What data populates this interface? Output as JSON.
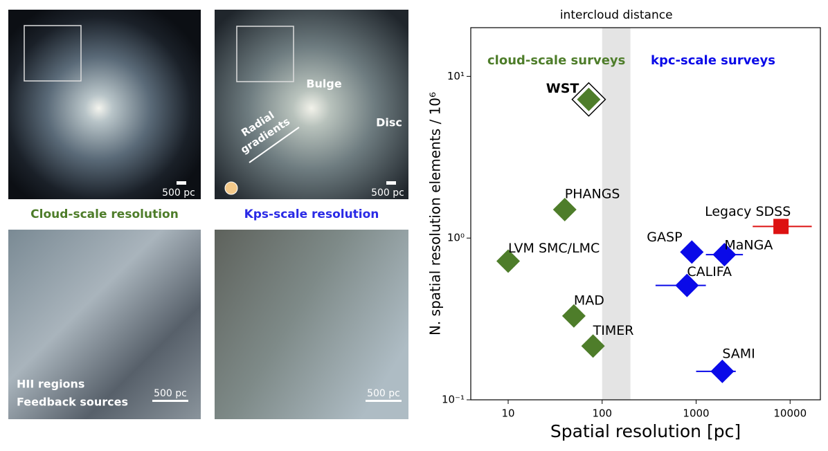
{
  "panels": [
    {
      "scale_bar": "500 pc"
    },
    {
      "scale_bar": "500 pc",
      "annotations": [
        "Bulge",
        "Disc"
      ],
      "arrow_label": [
        "Radial",
        "gradients"
      ]
    },
    {
      "scale_bar": "500 pc",
      "annotations": [
        "HII regions",
        "Feedback sources"
      ]
    },
    {
      "scale_bar": "500 pc"
    }
  ],
  "captions": [
    "Cloud-scale resolution",
    "Kps-scale resolution"
  ],
  "chart_data": {
    "type": "scatter",
    "title": "intercloud distance",
    "band": [
      100,
      200
    ],
    "xlabel": "Spatial resolution [pc]",
    "ylabel": "N. spatial resolution elements / 10⁶",
    "xscale": "log",
    "yscale": "log",
    "xlim": [
      4,
      21000
    ],
    "ylim": [
      0.1,
      20
    ],
    "xticks": [
      10,
      100,
      1000,
      10000
    ],
    "yticks": [
      {
        "value": 0.1,
        "label": "10⁻¹"
      },
      {
        "value": 1,
        "label": "10⁰"
      },
      {
        "value": 10,
        "label": "10¹"
      }
    ],
    "series": [
      {
        "name": "cloud-scale surveys",
        "color": "#4e7d2a",
        "marker": "diamond",
        "labels": [
          "WST",
          "PHANGS",
          "LVM SMC/LMC",
          "MAD",
          "TIMER"
        ],
        "x": [
          72,
          40,
          10,
          50,
          80
        ],
        "values": [
          7.2,
          1.5,
          0.72,
          0.33,
          0.215
        ],
        "xmin": [
          null,
          null,
          null,
          null,
          null
        ],
        "xmax": [
          null,
          null,
          null,
          null,
          null
        ]
      },
      {
        "name": "kpc-scale surveys",
        "color": "#0a0ae8",
        "marker": "diamond",
        "labels": [
          "GASP",
          "MaNGA",
          "CALIFA",
          "SAMI"
        ],
        "x": [
          900,
          2000,
          800,
          1900
        ],
        "values": [
          0.82,
          0.79,
          0.51,
          0.15
        ],
        "xmin": [
          null,
          1270,
          370,
          1000
        ],
        "xmax": [
          null,
          3150,
          1270,
          2640
        ]
      },
      {
        "color": "#dd1111",
        "marker": "square",
        "labels": [
          "Legacy SDSS"
        ],
        "x": [
          8000
        ],
        "values": [
          1.18
        ],
        "xmin": [
          4000
        ],
        "xmax": [
          17000
        ]
      }
    ]
  }
}
